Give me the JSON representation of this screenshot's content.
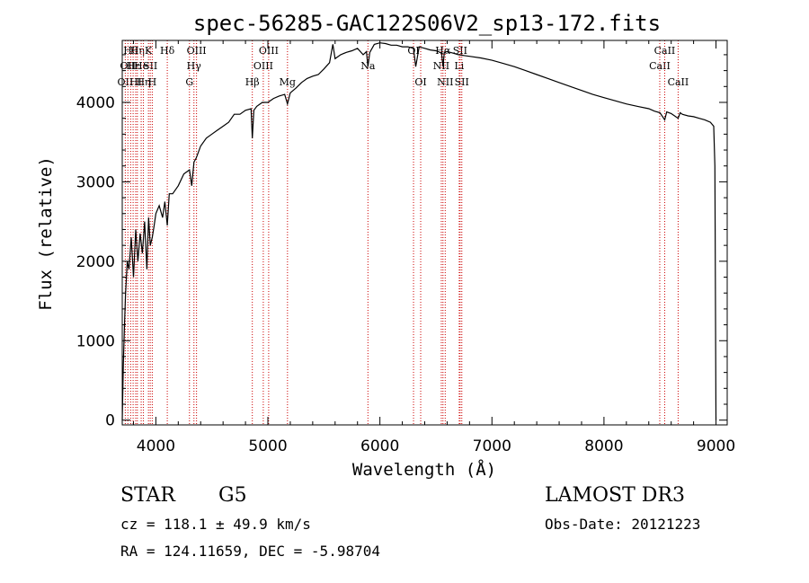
{
  "chart_data": {
    "type": "line",
    "title": "spec-56285-GAC122S06V2_sp13-172.fits",
    "xlabel": "Wavelength (Å)",
    "ylabel": "Flux (relative)",
    "xlim": [
      3700,
      9100
    ],
    "ylim": [
      -60,
      4780
    ],
    "x_ticks": [
      {
        "value": 4000,
        "label": "4000"
      },
      {
        "value": 5000,
        "label": "5000"
      },
      {
        "value": 6000,
        "label": "6000"
      },
      {
        "value": 7000,
        "label": "7000"
      },
      {
        "value": 8000,
        "label": "8000"
      },
      {
        "value": 9000,
        "label": "9000"
      }
    ],
    "y_ticks": [
      {
        "value": 0,
        "label": "0"
      },
      {
        "value": 1000,
        "label": "1000"
      },
      {
        "value": 2000,
        "label": "2000"
      },
      {
        "value": 3000,
        "label": "3000"
      },
      {
        "value": 4000,
        "label": "4000"
      }
    ],
    "series": [
      {
        "name": "flux",
        "x": [
          3700,
          3710,
          3720,
          3730,
          3745,
          3760,
          3780,
          3800,
          3820,
          3840,
          3860,
          3880,
          3900,
          3920,
          3935,
          3950,
          3968,
          3985,
          4000,
          4030,
          4060,
          4080,
          4102,
          4120,
          4150,
          4200,
          4250,
          4300,
          4320,
          4340,
          4360,
          4400,
          4450,
          4500,
          4550,
          4600,
          4650,
          4700,
          4750,
          4800,
          4850,
          4861,
          4875,
          4900,
          4950,
          5000,
          5050,
          5100,
          5150,
          5175,
          5200,
          5250,
          5300,
          5350,
          5400,
          5450,
          5500,
          5550,
          5580,
          5600,
          5650,
          5700,
          5750,
          5800,
          5850,
          5880,
          5893,
          5910,
          5950,
          6000,
          6050,
          6100,
          6150,
          6200,
          6250,
          6300,
          6320,
          6350,
          6400,
          6450,
          6500,
          6550,
          6563,
          6575,
          6600,
          6650,
          6700,
          6750,
          6800,
          6900,
          7000,
          7100,
          7200,
          7300,
          7400,
          7500,
          7600,
          7700,
          7800,
          7900,
          8000,
          8100,
          8200,
          8300,
          8400,
          8450,
          8500,
          8542,
          8560,
          8600,
          8662,
          8680,
          8700,
          8750,
          8800,
          8850,
          8900,
          8950,
          8980,
          8990,
          9000
        ],
        "y": [
          0,
          700,
          1200,
          1600,
          2000,
          1900,
          2300,
          1800,
          2400,
          2000,
          2350,
          2100,
          2500,
          1900,
          2550,
          2200,
          2300,
          2450,
          2600,
          2700,
          2550,
          2750,
          2450,
          2850,
          2850,
          2950,
          3100,
          3150,
          2950,
          3250,
          3300,
          3450,
          3550,
          3600,
          3650,
          3700,
          3750,
          3850,
          3850,
          3900,
          3920,
          3550,
          3900,
          3950,
          4000,
          4000,
          4050,
          4080,
          4100,
          3980,
          4120,
          4180,
          4250,
          4300,
          4330,
          4350,
          4420,
          4500,
          4730,
          4550,
          4600,
          4630,
          4650,
          4680,
          4600,
          4640,
          4450,
          4630,
          4730,
          4750,
          4740,
          4720,
          4720,
          4700,
          4700,
          4680,
          4450,
          4700,
          4680,
          4660,
          4650,
          4620,
          4450,
          4630,
          4640,
          4620,
          4600,
          4590,
          4580,
          4560,
          4530,
          4490,
          4450,
          4400,
          4350,
          4300,
          4250,
          4200,
          4150,
          4100,
          4060,
          4020,
          3980,
          3950,
          3920,
          3890,
          3870,
          3780,
          3880,
          3860,
          3800,
          3870,
          3850,
          3830,
          3820,
          3800,
          3780,
          3750,
          3700,
          3200,
          0
        ]
      }
    ],
    "line_marks": [
      {
        "w": 3727,
        "row": 2,
        "label": "OII"
      },
      {
        "w": 3750,
        "row": 1,
        "label": "OII"
      },
      {
        "w": 3775,
        "row": 0,
        "label": "Hθ"
      },
      {
        "w": 3797,
        "row": 1,
        "label": "Hε"
      },
      {
        "w": 3820,
        "row": 2,
        "label": "HI"
      },
      {
        "w": 3835,
        "row": 0,
        "label": "Hη"
      },
      {
        "w": 3869,
        "row": 1,
        "label": "He"
      },
      {
        "w": 3889,
        "row": 2,
        "label": "Hη"
      },
      {
        "w": 3934,
        "row": 0,
        "label": "K"
      },
      {
        "w": 3950,
        "row": 1,
        "label": "SII"
      },
      {
        "w": 3968,
        "row": 2,
        "label": "H"
      },
      {
        "w": 4102,
        "row": 0,
        "label": "Hδ"
      },
      {
        "w": 4300,
        "row": 2,
        "label": "G"
      },
      {
        "w": 4340,
        "row": 1,
        "label": "Hγ"
      },
      {
        "w": 4363,
        "row": 0,
        "label": "OIII"
      },
      {
        "w": 4861,
        "row": 2,
        "label": "Hβ"
      },
      {
        "w": 4959,
        "row": 1,
        "label": "OIII"
      },
      {
        "w": 5007,
        "row": 0,
        "label": "OIII"
      },
      {
        "w": 5175,
        "row": 2,
        "label": "Mg"
      },
      {
        "w": 5893,
        "row": 1,
        "label": "Na"
      },
      {
        "w": 6300,
        "row": 0,
        "label": "OI"
      },
      {
        "w": 6364,
        "row": 2,
        "label": "OI"
      },
      {
        "w": 6548,
        "row": 1,
        "label": "NII"
      },
      {
        "w": 6563,
        "row": 0,
        "label": "Hα"
      },
      {
        "w": 6583,
        "row": 2,
        "label": "NII"
      },
      {
        "w": 6708,
        "row": 1,
        "label": "Li"
      },
      {
        "w": 6716,
        "row": 0,
        "label": "SII"
      },
      {
        "w": 6731,
        "row": 2,
        "label": "SII"
      },
      {
        "w": 8498,
        "row": 1,
        "label": "CaII"
      },
      {
        "w": 8542,
        "row": 0,
        "label": "CaII"
      },
      {
        "w": 8662,
        "row": 2,
        "label": "CaII"
      }
    ]
  },
  "info": {
    "object_type": "STAR",
    "subclass": "G5",
    "survey": "LAMOST DR3",
    "cz": "cz = 118.1 ± 49.9 km/s",
    "obs_date": "Obs-Date: 20121223",
    "coords": "RA = 124.11659, DEC =  -5.98704"
  },
  "colors": {
    "axis": "#000000",
    "line": "#000000",
    "marker": "#cc0000",
    "background": "#ffffff"
  }
}
